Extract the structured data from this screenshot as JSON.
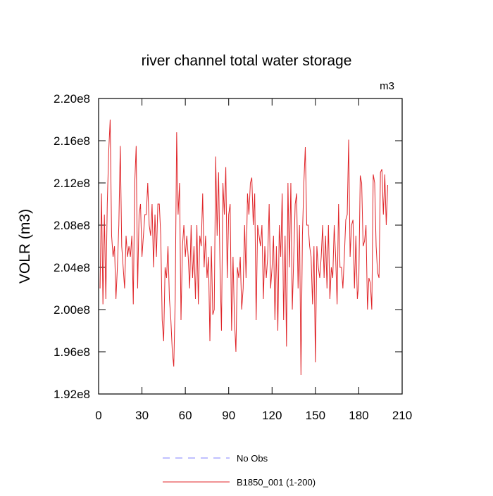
{
  "chart_data": {
    "type": "line",
    "title": "river channel total water storage",
    "ylabel": "VOLR  (m3)",
    "units_label": "m3",
    "xlim": [
      0,
      210
    ],
    "xticks": [
      0,
      30,
      60,
      90,
      120,
      150,
      180,
      210
    ],
    "ylim": [
      192000000.0,
      220000000.0
    ],
    "yticks": [
      {
        "value": 192000000.0,
        "label": "1.92e8"
      },
      {
        "value": 196000000.0,
        "label": "1.96e8"
      },
      {
        "value": 200000000.0,
        "label": "2.00e8"
      },
      {
        "value": 204000000.0,
        "label": "2.04e8"
      },
      {
        "value": 208000000.0,
        "label": "2.08e8"
      },
      {
        "value": 212000000.0,
        "label": "2.12e8"
      },
      {
        "value": 216000000.0,
        "label": "2.16e8"
      },
      {
        "value": 220000000.0,
        "label": "2.20e8"
      }
    ],
    "x": [
      1,
      2,
      3,
      4,
      5,
      6,
      7,
      8,
      9,
      10,
      11,
      12,
      13,
      14,
      15,
      16,
      17,
      18,
      19,
      20,
      21,
      22,
      23,
      24,
      25,
      26,
      27,
      28,
      29,
      30,
      31,
      32,
      33,
      34,
      35,
      36,
      37,
      38,
      39,
      40,
      41,
      42,
      43,
      44,
      45,
      46,
      47,
      48,
      49,
      50,
      51,
      52,
      53,
      54,
      55,
      56,
      57,
      58,
      59,
      60,
      61,
      62,
      63,
      64,
      65,
      66,
      67,
      68,
      69,
      70,
      71,
      72,
      73,
      74,
      75,
      76,
      77,
      78,
      79,
      80,
      81,
      82,
      83,
      84,
      85,
      86,
      87,
      88,
      89,
      90,
      91,
      92,
      93,
      94,
      95,
      96,
      97,
      98,
      99,
      100,
      101,
      102,
      103,
      104,
      105,
      106,
      107,
      108,
      109,
      110,
      111,
      112,
      113,
      114,
      115,
      116,
      117,
      118,
      119,
      120,
      121,
      122,
      123,
      124,
      125,
      126,
      127,
      128,
      129,
      130,
      131,
      132,
      133,
      134,
      135,
      136,
      137,
      138,
      139,
      140,
      141,
      142,
      143,
      144,
      145,
      146,
      147,
      148,
      149,
      150,
      151,
      152,
      153,
      154,
      155,
      156,
      157,
      158,
      159,
      160,
      161,
      162,
      163,
      164,
      165,
      166,
      167,
      168,
      169,
      170,
      171,
      172,
      173,
      174,
      175,
      176,
      177,
      178,
      179,
      180,
      181,
      182,
      183,
      184,
      185,
      186,
      187,
      188,
      189,
      190,
      191,
      192,
      193,
      194,
      195,
      196,
      197,
      198,
      199,
      200
    ],
    "series": [
      {
        "name": "No Obs",
        "color": "#8080ff",
        "dashed": true
      },
      {
        "name": "B1850_001 (1-200)",
        "color": "#e0262a",
        "dashed": false,
        "values": [
          202000000.0,
          211000000.0,
          200500000.0,
          209000000.0,
          201000000.0,
          210000000.0,
          215000000.0,
          218000000.0,
          207000000.0,
          205000000.0,
          206000000.0,
          201000000.0,
          204000000.0,
          208000000.0,
          215500000.0,
          206000000.0,
          204000000.0,
          202000000.0,
          207000000.0,
          205000000.0,
          206000000.0,
          205000000.0,
          207000000.0,
          200500000.0,
          212000000.0,
          215500000.0,
          202000000.0,
          209000000.0,
          210000000.0,
          205000000.0,
          207000000.0,
          209000000.0,
          209000000.0,
          212000000.0,
          208000000.0,
          207000000.0,
          210000000.0,
          204000000.0,
          209000000.0,
          205000000.0,
          210000000.0,
          210000000.0,
          207000000.0,
          199000000.0,
          197000000.0,
          204000000.0,
          203000000.0,
          206000000.0,
          201000000.0,
          199000000.0,
          196000000.0,
          194600000.0,
          201000000.0,
          216800000.0,
          209000000.0,
          212000000.0,
          199000000.0,
          206000000.0,
          208000000.0,
          205000000.0,
          207000000.0,
          205000000.0,
          202000000.0,
          208000000.0,
          203000000.0,
          206000000.0,
          201000000.0,
          208000000.0,
          200500000.0,
          207000000.0,
          206000000.0,
          211000000.0,
          204000000.0,
          207000000.0,
          203000000.0,
          205000000.0,
          197000000.0,
          206000000.0,
          199500000.0,
          200000000.0,
          214500000.0,
          207000000.0,
          213000000.0,
          204000000.0,
          198000000.0,
          212000000.0,
          209000000.0,
          213500000.0,
          203000000.0,
          209000000.0,
          210000000.0,
          198000000.0,
          205000000.0,
          199000000.0,
          196000000.0,
          204000000.0,
          203000000.0,
          205000000.0,
          200000000.0,
          202000000.0,
          208000000.0,
          203000000.0,
          211000000.0,
          209000000.0,
          212000000.0,
          212500000.0,
          208000000.0,
          211000000.0,
          199000000.0,
          208000000.0,
          207000000.0,
          206000000.0,
          208000000.0,
          201000000.0,
          206000000.0,
          203000000.0,
          205000000.0,
          210000000.0,
          202000000.0,
          204000000.0,
          207000000.0,
          199000000.0,
          206000000.0,
          198000000.0,
          208000000.0,
          205000000.0,
          211000000.0,
          199000000.0,
          207000000.0,
          196500000.0,
          212000000.0,
          204000000.0,
          212000000.0,
          200000000.0,
          205000000.0,
          210000000.0,
          211000000.0,
          202000000.0,
          208000000.0,
          193800000.0,
          207000000.0,
          212000000.0,
          215400000.0,
          208000000.0,
          208000000.0,
          206000000.0,
          205000000.0,
          200500000.0,
          206000000.0,
          195000000.0,
          206000000.0,
          204000000.0,
          203000000.0,
          205000000.0,
          208000000.0,
          203000000.0,
          207000000.0,
          202000000.0,
          208000000.0,
          201000000.0,
          204000000.0,
          203000000.0,
          208000000.0,
          205000000.0,
          200500000.0,
          210000000.0,
          204000000.0,
          204000000.0,
          202000000.0,
          205000000.0,
          208500000.0,
          209000000.0,
          216100000.0,
          205000000.0,
          208000000.0,
          208500000.0,
          202000000.0,
          207000000.0,
          201000000.0,
          202500000.0,
          212700000.0,
          212000000.0,
          206000000.0,
          206500000.0,
          208000000.0,
          200000000.0,
          203000000.0,
          202500000.0,
          200000000.0,
          212800000.0,
          212000000.0,
          206000000.0,
          203500000.0,
          203000000.0,
          213000000.0,
          213300000.0,
          209000000.0,
          212800000.0,
          208000000.0,
          211800000.0
        ]
      }
    ]
  }
}
